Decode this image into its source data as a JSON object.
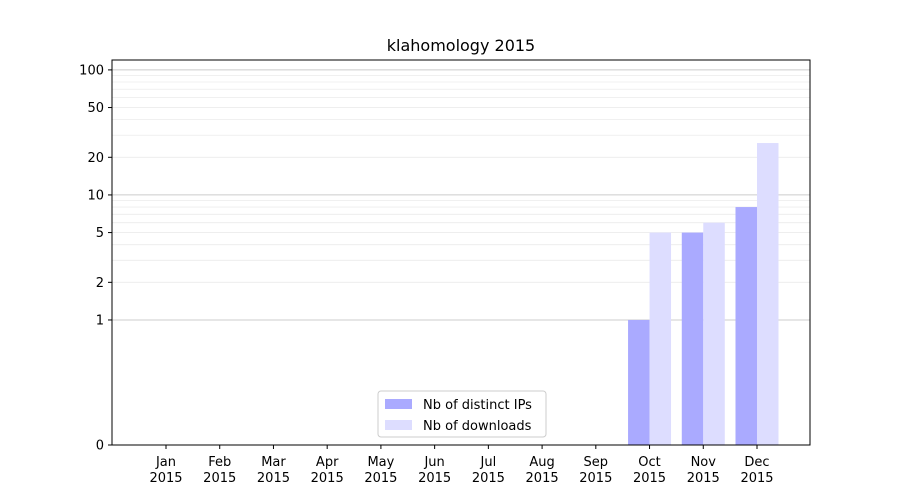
{
  "chart_data": {
    "type": "bar",
    "title": "klahomology 2015",
    "xlabel": "",
    "ylabel": "",
    "y_scale": "symlog",
    "ylim": [
      0,
      120
    ],
    "y_ticks": [
      0,
      1,
      2,
      5,
      10,
      20,
      50,
      100
    ],
    "grid": "horizontal",
    "legend_position": "lower-center",
    "categories": [
      {
        "month": "Jan",
        "year": "2015"
      },
      {
        "month": "Feb",
        "year": "2015"
      },
      {
        "month": "Mar",
        "year": "2015"
      },
      {
        "month": "Apr",
        "year": "2015"
      },
      {
        "month": "May",
        "year": "2015"
      },
      {
        "month": "Jun",
        "year": "2015"
      },
      {
        "month": "Jul",
        "year": "2015"
      },
      {
        "month": "Aug",
        "year": "2015"
      },
      {
        "month": "Sep",
        "year": "2015"
      },
      {
        "month": "Oct",
        "year": "2015"
      },
      {
        "month": "Nov",
        "year": "2015"
      },
      {
        "month": "Dec",
        "year": "2015"
      }
    ],
    "series": [
      {
        "name": "Nb of distinct IPs",
        "color": "#aaaaff",
        "values": [
          0,
          0,
          0,
          0,
          0,
          0,
          0,
          0,
          0,
          1,
          5,
          8
        ]
      },
      {
        "name": "Nb of downloads",
        "color": "#ddddff",
        "values": [
          0,
          0,
          0,
          0,
          0,
          0,
          0,
          0,
          0,
          5,
          6,
          26
        ]
      }
    ]
  }
}
